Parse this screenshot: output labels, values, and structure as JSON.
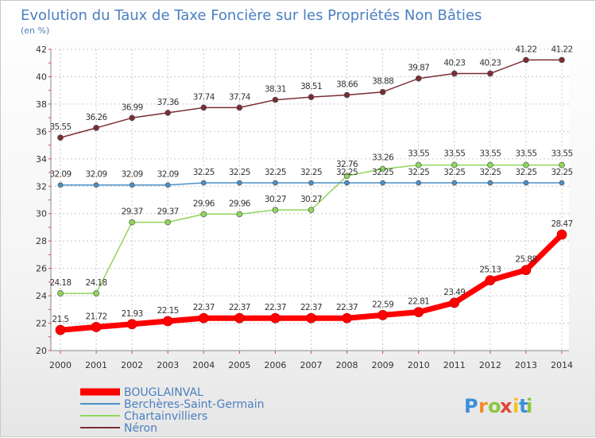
{
  "chart_data": {
    "type": "line",
    "title": "Evolution du Taux de Taxe Foncière sur les Propriétés Non Bâties",
    "ylabel": "(en %)",
    "xlabel": "",
    "ylim": [
      20,
      42
    ],
    "yticks": [
      20,
      22,
      24,
      26,
      28,
      30,
      32,
      34,
      36,
      38,
      40,
      42
    ],
    "categories": [
      "2000",
      "2001",
      "2002",
      "2003",
      "2004",
      "2005",
      "2006",
      "2007",
      "2008",
      "2009",
      "2010",
      "2011",
      "2012",
      "2013",
      "2014"
    ],
    "grid": true,
    "legend_position": "bottom-left",
    "series": [
      {
        "name": "BOUGLAINVAL",
        "color": "#ff0000",
        "values": [
          21.5,
          21.72,
          21.93,
          22.15,
          22.37,
          22.37,
          22.37,
          22.37,
          22.37,
          22.59,
          22.81,
          23.49,
          25.13,
          25.88,
          28.47
        ],
        "labels": [
          "21.5",
          "21.72",
          "21.93",
          "22.15",
          "22.37",
          "22.37",
          "22.37",
          "22.37",
          "22.37",
          "22.59",
          "22.81",
          "23.49",
          "25.13",
          "25.88",
          "28.47"
        ]
      },
      {
        "name": "Berchères-Saint-Germain",
        "color": "#4a90c8",
        "values": [
          32.09,
          32.09,
          32.09,
          32.09,
          32.25,
          32.25,
          32.25,
          32.25,
          32.25,
          32.25,
          32.25,
          32.25,
          32.25,
          32.25,
          32.25
        ],
        "labels": [
          "32.09",
          "32.09",
          "32.09",
          "32.09",
          "32.25",
          "32.25",
          "32.25",
          "32.25",
          "32.25",
          "32.25",
          "32.25",
          "32.25",
          "32.25",
          "32.25",
          "32.25"
        ]
      },
      {
        "name": "Chartainvilliers",
        "color": "#8fd65a",
        "values": [
          24.18,
          24.18,
          29.37,
          29.37,
          29.96,
          29.96,
          30.27,
          30.27,
          32.76,
          33.26,
          33.55,
          33.55,
          33.55,
          33.55,
          33.55
        ],
        "labels": [
          "24.18",
          "24.18",
          "29.37",
          "29.37",
          "29.96",
          "29.96",
          "30.27",
          "30.27",
          "32.76",
          "33.26",
          "33.55",
          "33.55",
          "33.55",
          "33.55",
          "33.55"
        ]
      },
      {
        "name": "Néron",
        "color": "#7a2e33",
        "values": [
          35.55,
          36.26,
          36.99,
          37.36,
          37.74,
          37.74,
          38.31,
          38.51,
          38.66,
          38.88,
          39.87,
          40.23,
          40.23,
          41.22,
          41.22
        ],
        "labels": [
          "35.55",
          "36.26",
          "36.99",
          "37.36",
          "37.74",
          "37.74",
          "38.31",
          "38.51",
          "38.66",
          "38.88",
          "39.87",
          "40.23",
          "40.23",
          "41.22",
          "41.22"
        ]
      }
    ]
  },
  "branding": {
    "logo_text": "Proxiti",
    "logo_colors": [
      "#3b8fd8",
      "#f28c28",
      "#8cc63f",
      "#e0463a",
      "#f6c21c",
      "#3b8fd8",
      "#8cc63f"
    ]
  }
}
